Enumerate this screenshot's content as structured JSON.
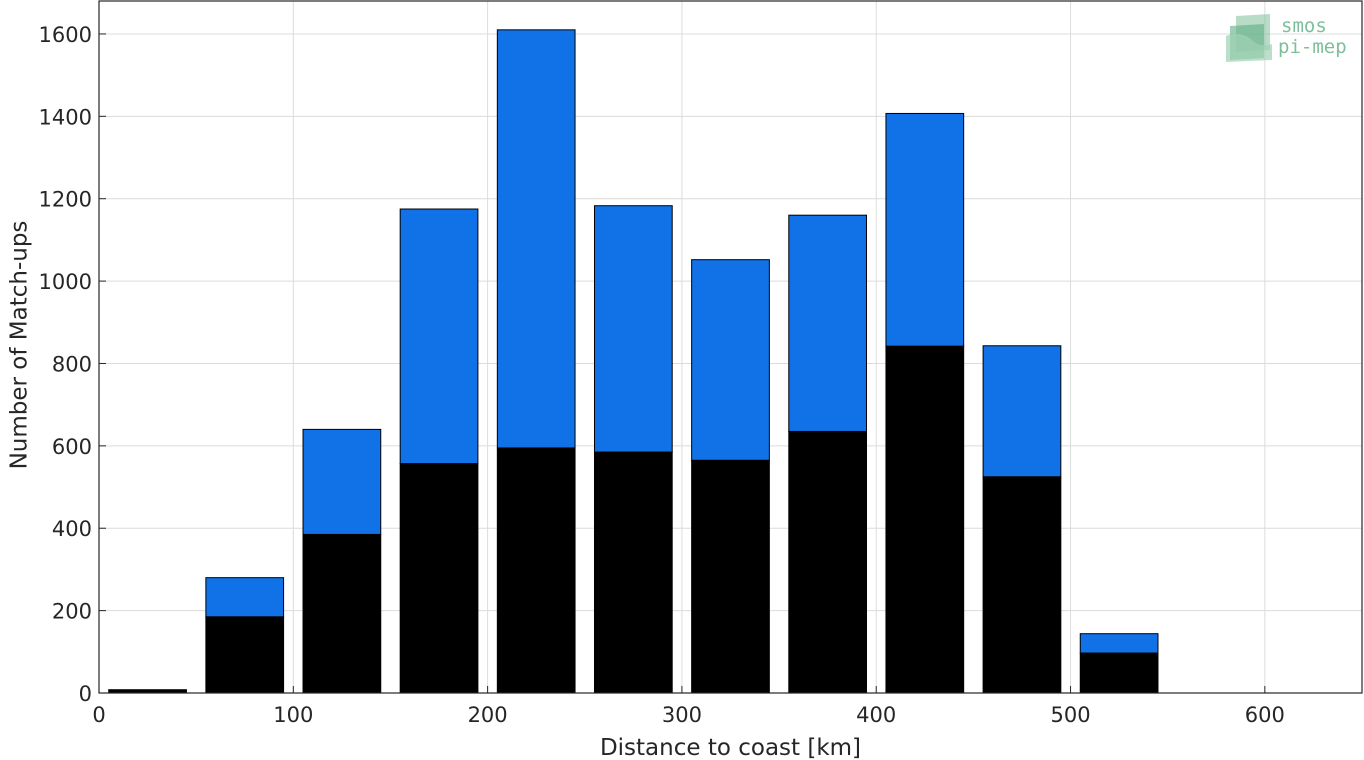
{
  "chart_data": {
    "type": "bar",
    "stacked": true,
    "xlabel": "Distance to coast [km]",
    "ylabel": "Number of Match-ups",
    "xlim": [
      0,
      650
    ],
    "ylim": [
      0,
      1680
    ],
    "xticks": [
      0,
      100,
      200,
      300,
      400,
      500,
      600
    ],
    "yticks": [
      0,
      200,
      400,
      600,
      800,
      1000,
      1200,
      1400,
      1600
    ],
    "grid": true,
    "bar_width": 40,
    "x": [
      25,
      75,
      125,
      175,
      225,
      275,
      325,
      375,
      425,
      475,
      525
    ],
    "series": [
      {
        "color": "#000000",
        "values": [
          8,
          185,
          385,
          557,
          595,
          585,
          565,
          635,
          842,
          525,
          97
        ]
      },
      {
        "color": "#1072e6",
        "values": [
          0,
          95,
          255,
          618,
          1015,
          598,
          487,
          525,
          565,
          318,
          47
        ]
      }
    ],
    "totals": [
      8,
      280,
      640,
      1175,
      1610,
      1183,
      1052,
      1160,
      1407,
      843,
      144
    ]
  },
  "logo": {
    "line1": "smos",
    "line2": "pi-mep",
    "color": "#7dbf9a"
  }
}
